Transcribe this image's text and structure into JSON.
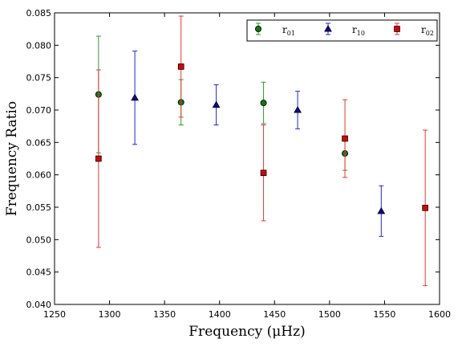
{
  "chart_data": {
    "type": "scatter",
    "xlabel": "Frequency  (μHz)",
    "ylabel": "Frequency Ratio",
    "xlim": [
      1250,
      1600
    ],
    "ylim": [
      0.04,
      0.085
    ],
    "x_ticks": [
      "1250",
      "1300",
      "1350",
      "1400",
      "1450",
      "1500",
      "1550",
      "1600"
    ],
    "y_ticks": [
      "0.040",
      "0.045",
      "0.050",
      "0.055",
      "0.060",
      "0.065",
      "0.070",
      "0.075",
      "0.080",
      "0.085"
    ],
    "grid": false,
    "legend_position": "top-right",
    "series": [
      {
        "name": "r01",
        "label_main": "r",
        "label_sub": "01",
        "marker": "circle",
        "color": "#2a9d2a",
        "marker_color": "#117711",
        "points": [
          {
            "x": 1290,
            "y": 0.0724,
            "err_lo": 0.009,
            "err_hi": 0.009
          },
          {
            "x": 1365,
            "y": 0.0712,
            "err_lo": 0.0035,
            "err_hi": 0.0035
          },
          {
            "x": 1440,
            "y": 0.0711,
            "err_lo": 0.0032,
            "err_hi": 0.0032
          },
          {
            "x": 1514,
            "y": 0.0633,
            "err_lo": 0.0026,
            "err_hi": 0.0026
          }
        ]
      },
      {
        "name": "r10",
        "label_main": "r",
        "label_sub": "10",
        "marker": "triangle",
        "color": "#2222ee",
        "marker_color": "#0a0a9a",
        "points": [
          {
            "x": 1323,
            "y": 0.0719,
            "err_lo": 0.0072,
            "err_hi": 0.0072
          },
          {
            "x": 1397,
            "y": 0.0708,
            "err_lo": 0.0031,
            "err_hi": 0.0031
          },
          {
            "x": 1471,
            "y": 0.07,
            "err_lo": 0.0029,
            "err_hi": 0.0029
          },
          {
            "x": 1547,
            "y": 0.0544,
            "err_lo": 0.0039,
            "err_hi": 0.0039
          }
        ]
      },
      {
        "name": "r02",
        "label_main": "r",
        "label_sub": "02",
        "marker": "square",
        "color": "#ee3333",
        "marker_color": "#dd0000",
        "points": [
          {
            "x": 1290,
            "y": 0.0625,
            "err_lo": 0.0137,
            "err_hi": 0.0137
          },
          {
            "x": 1365,
            "y": 0.0767,
            "err_lo": 0.0078,
            "err_hi": 0.0078
          },
          {
            "x": 1440,
            "y": 0.0603,
            "err_lo": 0.0074,
            "err_hi": 0.0074
          },
          {
            "x": 1514,
            "y": 0.0656,
            "err_lo": 0.006,
            "err_hi": 0.006
          },
          {
            "x": 1587,
            "y": 0.0549,
            "err_lo": 0.012,
            "err_hi": 0.012
          }
        ]
      }
    ]
  }
}
